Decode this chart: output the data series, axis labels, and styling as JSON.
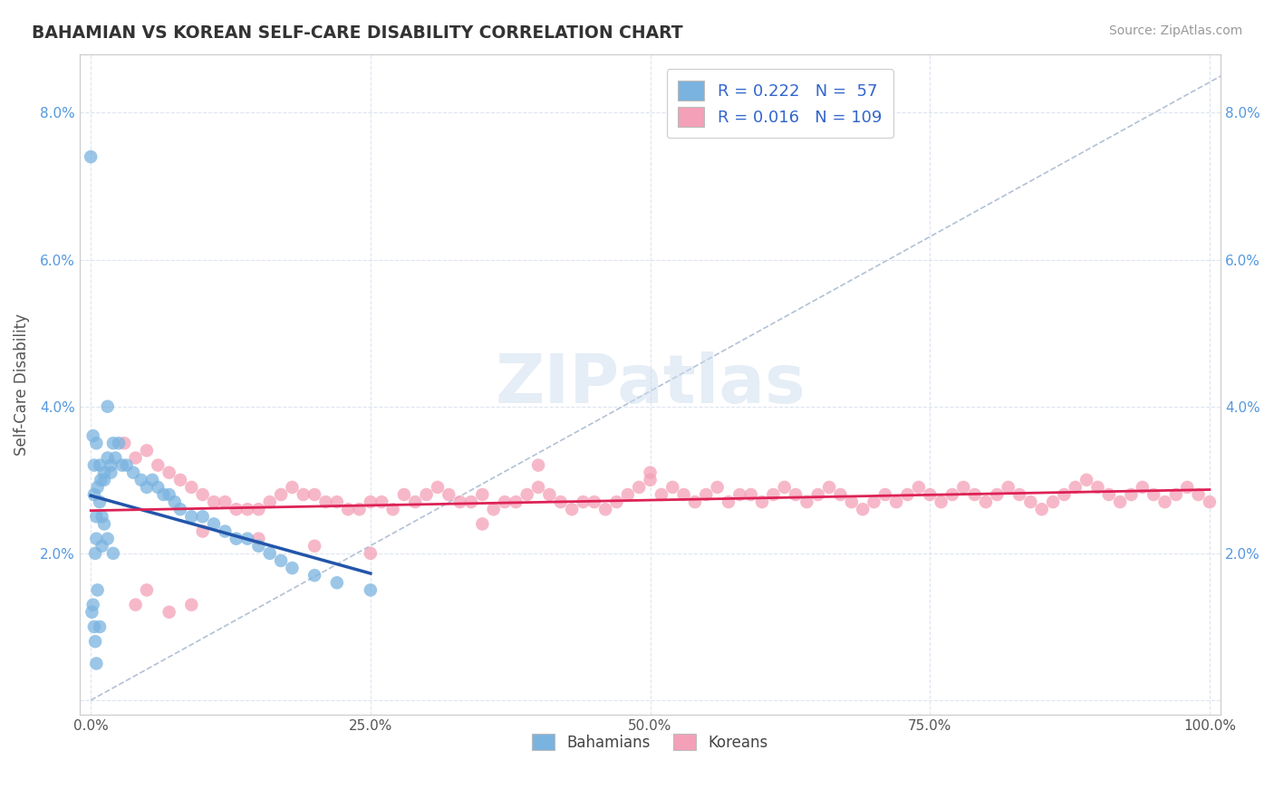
{
  "title": "BAHAMIAN VS KOREAN SELF-CARE DISABILITY CORRELATION CHART",
  "source_text": "Source: ZipAtlas.com",
  "ylabel": "Self-Care Disability",
  "xlim": [
    -1.0,
    101.0
  ],
  "ylim": [
    -0.2,
    8.8
  ],
  "x_ticks": [
    0,
    25,
    50,
    75,
    100
  ],
  "x_tick_labels": [
    "0.0%",
    "25.0%",
    "50.0%",
    "75.0%",
    "100.0%"
  ],
  "y_ticks": [
    0,
    2,
    4,
    6,
    8
  ],
  "y_tick_labels": [
    "",
    "2.0%",
    "4.0%",
    "6.0%",
    "8.0%"
  ],
  "bahamian_color": "#7ab3e0",
  "korean_color": "#f4a0b8",
  "trend_bahamian_color": "#2255aa",
  "trend_korean_color": "#dd2255",
  "diagonal_color": "#aabbd0",
  "R_bahamian": 0.222,
  "N_bahamian": 57,
  "R_korean": 0.016,
  "N_korean": 109,
  "background_color": "#ffffff",
  "grid_color": "#dde4f0",
  "watermark": "ZIPatlas",
  "bahamians_x": [
    0.0,
    0.2,
    0.4,
    0.6,
    0.8,
    0.3,
    0.5,
    0.8,
    1.0,
    1.2,
    1.5,
    0.5,
    1.0,
    1.5,
    2.0,
    0.5,
    0.8,
    1.2,
    1.5,
    1.8,
    2.0,
    2.5,
    0.3,
    0.6,
    0.9,
    1.2,
    1.8,
    2.2,
    2.8,
    3.2,
    3.8,
    4.5,
    5.0,
    5.5,
    6.0,
    6.5,
    7.0,
    7.5,
    8.0,
    9.0,
    10.0,
    11.0,
    12.0,
    13.0,
    14.0,
    15.0,
    16.0,
    17.0,
    18.0,
    20.0,
    22.0,
    25.0,
    0.1,
    0.2,
    0.3,
    0.4,
    0.5
  ],
  "bahamians_y": [
    7.4,
    3.6,
    2.0,
    1.5,
    1.0,
    3.2,
    2.5,
    2.7,
    2.5,
    2.4,
    4.0,
    2.2,
    2.1,
    2.2,
    2.0,
    3.5,
    3.2,
    3.0,
    3.3,
    3.1,
    3.5,
    3.5,
    2.8,
    2.9,
    3.0,
    3.1,
    3.2,
    3.3,
    3.2,
    3.2,
    3.1,
    3.0,
    2.9,
    3.0,
    2.9,
    2.8,
    2.8,
    2.7,
    2.6,
    2.5,
    2.5,
    2.4,
    2.3,
    2.2,
    2.2,
    2.1,
    2.0,
    1.9,
    1.8,
    1.7,
    1.6,
    1.5,
    1.2,
    1.3,
    1.0,
    0.8,
    0.5
  ],
  "koreans_x": [
    3.0,
    4.0,
    5.0,
    6.0,
    7.0,
    8.0,
    9.0,
    10.0,
    11.0,
    12.0,
    13.0,
    14.0,
    15.0,
    16.0,
    17.0,
    18.0,
    19.0,
    20.0,
    21.0,
    22.0,
    23.0,
    24.0,
    25.0,
    26.0,
    27.0,
    28.0,
    29.0,
    30.0,
    31.0,
    32.0,
    33.0,
    34.0,
    35.0,
    36.0,
    37.0,
    38.0,
    39.0,
    40.0,
    41.0,
    42.0,
    43.0,
    44.0,
    45.0,
    46.0,
    47.0,
    48.0,
    49.0,
    50.0,
    51.0,
    52.0,
    53.0,
    54.0,
    55.0,
    56.0,
    57.0,
    58.0,
    59.0,
    60.0,
    61.0,
    62.0,
    63.0,
    64.0,
    65.0,
    66.0,
    67.0,
    68.0,
    69.0,
    70.0,
    71.0,
    72.0,
    73.0,
    74.0,
    75.0,
    76.0,
    77.0,
    78.0,
    79.0,
    80.0,
    81.0,
    82.0,
    83.0,
    84.0,
    85.0,
    86.0,
    87.0,
    88.0,
    89.0,
    90.0,
    91.0,
    92.0,
    93.0,
    94.0,
    95.0,
    96.0,
    97.0,
    98.0,
    99.0,
    100.0,
    40.0,
    50.0,
    10.0,
    15.0,
    20.0,
    25.0,
    5.0,
    4.0,
    7.0,
    9.0,
    35.0
  ],
  "koreans_y": [
    3.5,
    3.3,
    3.4,
    3.2,
    3.1,
    3.0,
    2.9,
    2.8,
    2.7,
    2.7,
    2.6,
    2.6,
    2.6,
    2.7,
    2.8,
    2.9,
    2.8,
    2.8,
    2.7,
    2.7,
    2.6,
    2.6,
    2.7,
    2.7,
    2.6,
    2.8,
    2.7,
    2.8,
    2.9,
    2.8,
    2.7,
    2.7,
    2.8,
    2.6,
    2.7,
    2.7,
    2.8,
    2.9,
    2.8,
    2.7,
    2.6,
    2.7,
    2.7,
    2.6,
    2.7,
    2.8,
    2.9,
    3.0,
    2.8,
    2.9,
    2.8,
    2.7,
    2.8,
    2.9,
    2.7,
    2.8,
    2.8,
    2.7,
    2.8,
    2.9,
    2.8,
    2.7,
    2.8,
    2.9,
    2.8,
    2.7,
    2.6,
    2.7,
    2.8,
    2.7,
    2.8,
    2.9,
    2.8,
    2.7,
    2.8,
    2.9,
    2.8,
    2.7,
    2.8,
    2.9,
    2.8,
    2.7,
    2.6,
    2.7,
    2.8,
    2.9,
    3.0,
    2.9,
    2.8,
    2.7,
    2.8,
    2.9,
    2.8,
    2.7,
    2.8,
    2.9,
    2.8,
    2.7,
    3.2,
    3.1,
    2.3,
    2.2,
    2.1,
    2.0,
    1.5,
    1.3,
    1.2,
    1.3,
    2.4
  ],
  "legend_labels": [
    "R = 0.222   N =  57",
    "R = 0.016   N = 109"
  ],
  "legend_color": "#3366cc"
}
